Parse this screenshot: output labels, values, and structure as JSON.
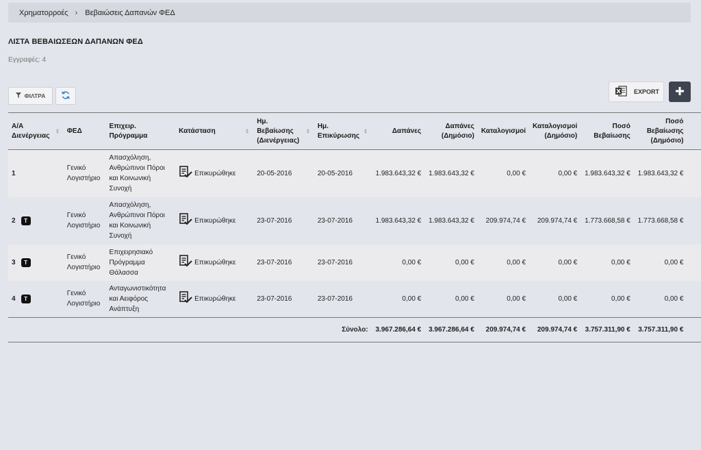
{
  "breadcrumb": {
    "home": "Χρηματορροές",
    "separator": "›",
    "current": "Βεβαιώσεις Δαπανών ΦΕΔ"
  },
  "page_title": "ΛΙΣΤΑ ΒΕΒΑΙΩΣΕΩΝ ΔΑΠΑΝΩΝ ΦΕΔ",
  "records": {
    "label": "Εγγραφές:",
    "count": "4"
  },
  "toolbar": {
    "filter_label": "ΦΙΛΤΡΑ",
    "export_label": "EXPORT"
  },
  "table": {
    "headers": {
      "aa_line1": "Α/Α",
      "aa_line2": "Διενέργειας",
      "fed": "ΦΕΔ",
      "program_line1": "Επιχειρ.",
      "program_line2": "Πρόγραμμα",
      "status": "Κατάσταση",
      "cert_date_line1": "Ημ.",
      "cert_date_line2": "Βεβαίωσης",
      "cert_date_line3": "(Διενέργειας)",
      "verify_date_line1": "Ημ.",
      "verify_date_line2": "Επικύρωσης",
      "expenses": "Δαπάνες",
      "expenses_public_line1": "Δαπάνες",
      "expenses_public_line2": "(Δημόσιο)",
      "charges": "Καταλογισμοί",
      "charges_public_line1": "Καταλογισμοί",
      "charges_public_line2": "(Δημόσιο)",
      "cert_amount_line1": "Ποσό",
      "cert_amount_line2": "Βεβαίωσης",
      "cert_amount_public_line1": "Ποσό",
      "cert_amount_public_line2": "Βεβαίωσης",
      "cert_amount_public_line3": "(Δημόσιο)"
    },
    "rows": [
      {
        "aa": "1",
        "badge": "",
        "fed_line1": "Γενικό",
        "fed_line2": "Λογιστήριο",
        "program": [
          "Απασχόληση,",
          "Ανθρώπινοι Πόροι",
          "και Κοινωνική",
          "Συνοχή"
        ],
        "status": "Επικυρώθηκε",
        "cert_date": "20-05-2016",
        "verify_date": "20-05-2016",
        "expenses": "1.983.643,32 €",
        "expenses_public": "1.983.643,32 €",
        "charges": "0,00 €",
        "charges_public": "0,00 €",
        "cert_amount": "1.983.643,32 €",
        "cert_amount_public": "1.983.643,32 €"
      },
      {
        "aa": "2",
        "badge": "T",
        "fed_line1": "Γενικό",
        "fed_line2": "Λογιστήριο",
        "program": [
          "Απασχόληση,",
          "Ανθρώπινοι Πόροι",
          "και Κοινωνική",
          "Συνοχή"
        ],
        "status": "Επικυρώθηκε",
        "cert_date": "23-07-2016",
        "verify_date": "23-07-2016",
        "expenses": "1.983.643,32 €",
        "expenses_public": "1.983.643,32 €",
        "charges": "209.974,74 €",
        "charges_public": "209.974,74 €",
        "cert_amount": "1.773.668,58 €",
        "cert_amount_public": "1.773.668,58 €"
      },
      {
        "aa": "3",
        "badge": "T",
        "fed_line1": "Γενικό",
        "fed_line2": "Λογιστήριο",
        "program": [
          "Επιχειρησιακό",
          "Πρόγραμμα",
          "Θάλασσα"
        ],
        "status": "Επικυρώθηκε",
        "cert_date": "23-07-2016",
        "verify_date": "23-07-2016",
        "expenses": "0,00 €",
        "expenses_public": "0,00 €",
        "charges": "0,00 €",
        "charges_public": "0,00 €",
        "cert_amount": "0,00 €",
        "cert_amount_public": "0,00 €"
      },
      {
        "aa": "4",
        "badge": "T",
        "fed_line1": "Γενικό",
        "fed_line2": "Λογιστήριο",
        "program": [
          "Ανταγωνιστικότητα",
          "και Αειφόρος",
          "Ανάπτυξη"
        ],
        "status": "Επικυρώθηκε",
        "cert_date": "23-07-2016",
        "verify_date": "23-07-2016",
        "expenses": "0,00 €",
        "expenses_public": "0,00 €",
        "charges": "0,00 €",
        "charges_public": "0,00 €",
        "cert_amount": "0,00 €",
        "cert_amount_public": "0,00 €"
      }
    ],
    "totals": {
      "label": "Σύνολο:",
      "expenses": "3.967.286,64 €",
      "expenses_public": "3.967.286,64 €",
      "charges": "209.974,74 €",
      "charges_public": "209.974,74 €",
      "cert_amount": "3.757.311,90 €",
      "cert_amount_public": "3.757.311,90 €"
    }
  },
  "icons": {
    "filter": "filter-icon",
    "refresh": "refresh-icon",
    "excel": "excel-icon",
    "add": "plus-icon",
    "status": "checklist-icon",
    "sort": "sort-icon"
  },
  "colors": {
    "background": "#e3e5ec",
    "add_button": "#3d4450",
    "refresh": "#2a7fd4",
    "badge": "#111111"
  }
}
